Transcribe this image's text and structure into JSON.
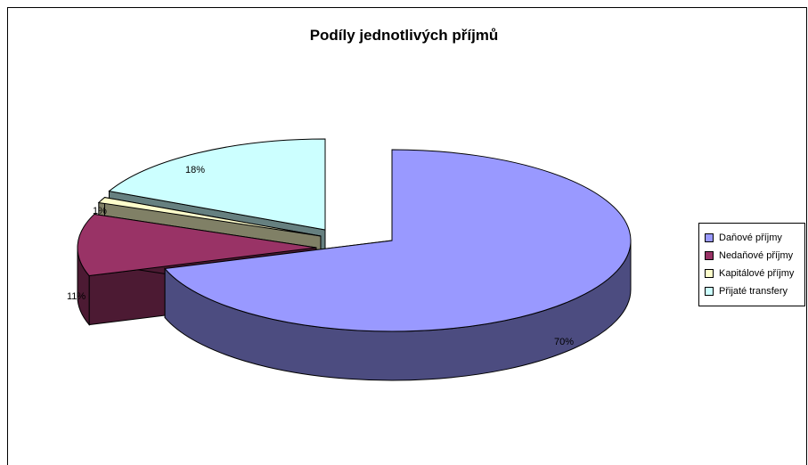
{
  "chart_data": {
    "type": "pie",
    "title": "Podíly jednotlivých příjmů",
    "categories": [
      "Daňové příjmy",
      "Nedaňové příjmy",
      "Kapitálové příjmy",
      "Přijaté transfery"
    ],
    "values": [
      70,
      11,
      1,
      18
    ],
    "data_labels": [
      "70%",
      "11%",
      "1%",
      "18%"
    ],
    "colors": [
      "#9999FF",
      "#993366",
      "#FFFFCC",
      "#CCFFFF"
    ],
    "side_colors": [
      "#4C4C80",
      "#4C1A33",
      "#808066",
      "#668080"
    ],
    "legend_position": "right"
  }
}
